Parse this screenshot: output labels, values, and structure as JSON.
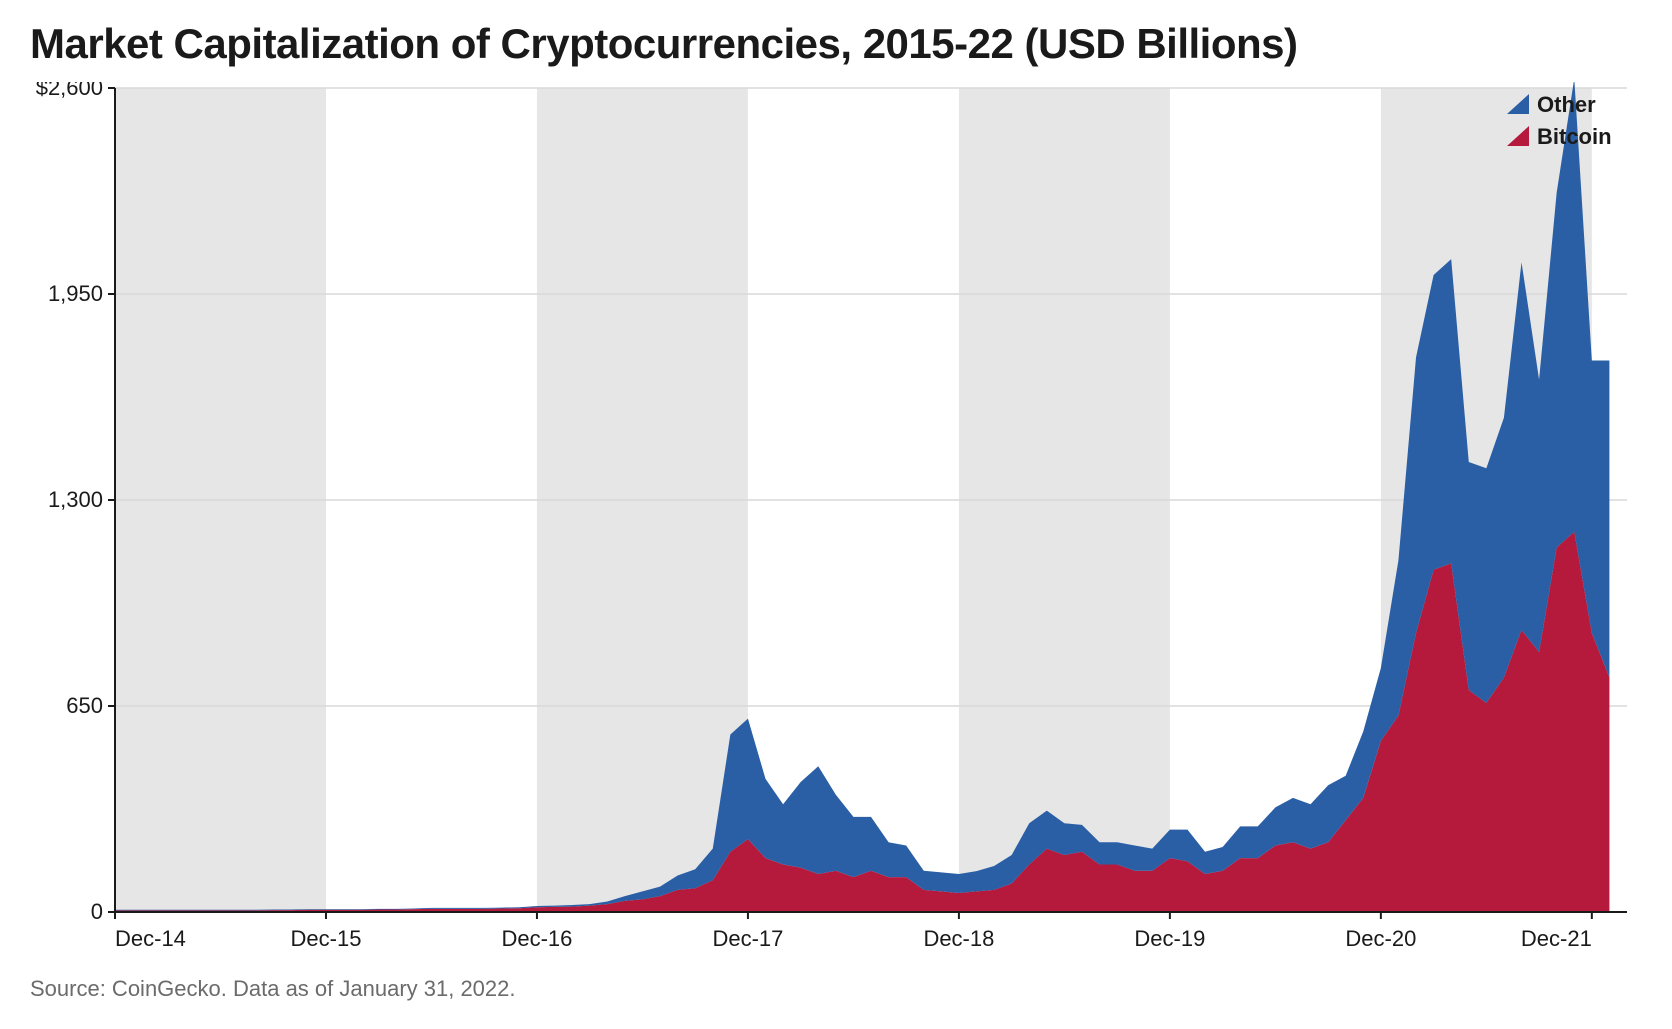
{
  "chart": {
    "type": "stacked-area",
    "title": "Market Capitalization of Cryptocurrencies, 2015-22 (USD Billions)",
    "source": "Source: CoinGecko. Data as of January 31, 2022.",
    "background_color": "#ffffff",
    "band_color": "#e6e6e6",
    "grid_color": "#d9d9d9",
    "axis_color": "#1a1a1a",
    "tick_label_color": "#1a1a1a",
    "title_color": "#1a1a1a",
    "source_color": "#6b6b6b",
    "title_fontsize": 42,
    "tick_fontsize": 22,
    "source_fontsize": 22,
    "y": {
      "min": 0,
      "max": 2600,
      "ticks": [
        0,
        650,
        1300,
        1950,
        2600
      ],
      "tick_labels": [
        "0",
        "650",
        "1,300",
        "1,950",
        "$2,600"
      ]
    },
    "x": {
      "min": 0,
      "max": 86,
      "tick_indices": [
        0,
        12,
        24,
        36,
        48,
        60,
        72,
        84
      ],
      "tick_labels": [
        "Dec-14",
        "Dec-15",
        "Dec-16",
        "Dec-17",
        "Dec-18",
        "Dec-19",
        "Dec-20",
        "Dec-21"
      ],
      "shaded_bands": [
        [
          0,
          12
        ],
        [
          24,
          36
        ],
        [
          48,
          60
        ],
        [
          72,
          84
        ]
      ]
    },
    "series": [
      {
        "name": "Bitcoin",
        "color": "#b51a3c",
        "values": [
          5,
          5,
          5,
          5,
          5,
          5,
          5,
          5,
          5,
          6,
          6,
          7,
          7,
          7,
          7,
          8,
          8,
          9,
          10,
          10,
          10,
          10,
          11,
          12,
          15,
          16,
          17,
          20,
          25,
          35,
          40,
          50,
          70,
          75,
          100,
          190,
          230,
          170,
          150,
          140,
          120,
          130,
          110,
          130,
          110,
          110,
          70,
          65,
          60,
          65,
          70,
          90,
          150,
          200,
          180,
          190,
          150,
          150,
          130,
          130,
          170,
          160,
          120,
          130,
          170,
          170,
          210,
          220,
          200,
          220,
          290,
          360,
          540,
          620,
          880,
          1080,
          1100,
          700,
          660,
          740,
          890,
          820,
          1150,
          1200,
          880,
          740
        ]
      },
      {
        "name": "Other",
        "color": "#2a5fa6",
        "values": [
          2,
          2,
          2,
          2,
          2,
          2,
          2,
          2,
          2,
          2,
          2,
          2,
          2,
          2,
          2,
          2,
          2,
          2,
          3,
          3,
          3,
          3,
          3,
          3,
          4,
          4,
          5,
          5,
          8,
          15,
          25,
          30,
          45,
          60,
          100,
          370,
          380,
          250,
          190,
          270,
          340,
          240,
          190,
          170,
          110,
          100,
          60,
          60,
          60,
          64,
          75,
          90,
          130,
          120,
          100,
          85,
          70,
          70,
          80,
          70,
          90,
          100,
          70,
          75,
          100,
          100,
          120,
          140,
          140,
          180,
          140,
          210,
          230,
          490,
          870,
          930,
          960,
          720,
          740,
          820,
          1160,
          860,
          1120,
          1430,
          860,
          1000
        ]
      }
    ],
    "legend": {
      "items": [
        {
          "label": "Other",
          "color": "#2a5fa6"
        },
        {
          "label": "Bitcoin",
          "color": "#b51a3c"
        }
      ],
      "label_color": "#1a1a1a"
    }
  }
}
